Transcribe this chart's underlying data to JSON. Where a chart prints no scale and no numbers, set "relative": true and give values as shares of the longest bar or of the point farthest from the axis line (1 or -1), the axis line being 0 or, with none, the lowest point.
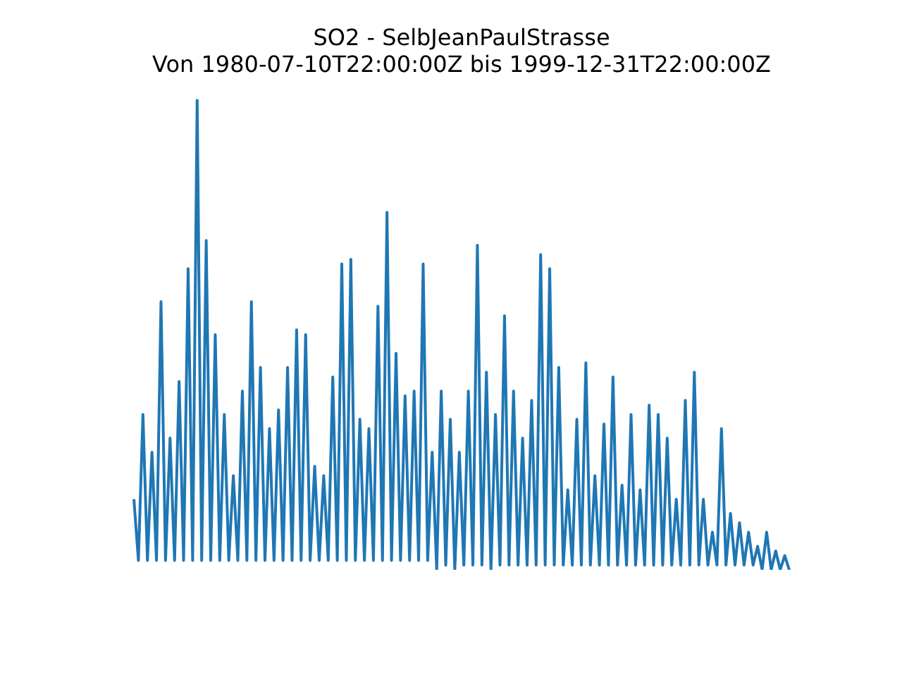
{
  "chart_data": {
    "type": "line",
    "title": "SO2 - SelbJeanPaulStrasse",
    "subtitle": "Von 1980-07-10T22:00:00Z bis 1999-12-31T22:00:00Z",
    "relative": true,
    "categories": [
      null,
      null,
      null,
      null,
      null,
      null,
      null,
      null,
      null,
      null,
      null,
      null,
      null,
      null,
      null,
      null,
      null,
      null,
      null,
      null,
      null,
      null,
      null,
      null,
      null,
      null,
      null,
      null,
      null,
      null,
      null,
      null,
      null,
      null,
      null,
      null,
      null,
      null,
      null,
      null,
      null,
      null,
      null,
      null,
      null,
      null,
      null,
      null,
      null,
      null,
      null,
      null,
      null,
      null,
      null,
      null,
      null,
      null,
      null,
      null,
      null,
      null,
      null,
      null,
      null,
      null,
      null,
      null,
      null,
      null,
      null,
      null,
      null,
      null,
      null,
      null,
      null,
      null,
      null,
      null,
      null,
      null,
      null,
      null,
      null,
      null,
      null,
      null,
      null,
      null,
      null,
      null,
      null,
      null,
      null,
      null,
      null,
      null,
      null,
      null,
      null,
      null,
      null,
      null,
      null,
      null,
      null,
      null,
      null,
      null,
      null,
      null,
      null,
      null,
      null,
      null,
      null,
      null,
      null,
      null,
      null,
      null,
      null,
      null,
      null,
      null,
      null,
      null,
      null,
      null,
      null,
      null,
      null,
      null,
      null,
      null,
      null,
      null,
      null,
      null,
      null,
      null,
      null,
      null,
      null,
      null
    ],
    "series": [
      {
        "color": "#1f77b4",
        "values": [
          0.15,
          0.02,
          0.33,
          0.02,
          0.25,
          0.02,
          0.57,
          0.02,
          0.28,
          0.02,
          0.4,
          0.02,
          0.64,
          0.02,
          1.0,
          0.02,
          0.7,
          0.02,
          0.5,
          0.02,
          0.33,
          0.02,
          0.2,
          0.02,
          0.38,
          0.02,
          0.57,
          0.02,
          0.43,
          0.02,
          0.3,
          0.02,
          0.34,
          0.02,
          0.43,
          0.02,
          0.51,
          0.02,
          0.5,
          0.02,
          0.22,
          0.02,
          0.2,
          0.02,
          0.41,
          0.02,
          0.65,
          0.02,
          0.66,
          0.02,
          0.32,
          0.02,
          0.3,
          0.02,
          0.56,
          0.02,
          0.76,
          0.02,
          0.46,
          0.02,
          0.37,
          0.02,
          0.38,
          0.02,
          0.65,
          0.02,
          0.25,
          0.0,
          0.38,
          0.01,
          0.32,
          0.0,
          0.25,
          0.01,
          0.38,
          0.01,
          0.69,
          0.01,
          0.42,
          0.0,
          0.33,
          0.01,
          0.54,
          0.01,
          0.38,
          0.01,
          0.28,
          0.01,
          0.36,
          0.01,
          0.67,
          0.01,
          0.64,
          0.01,
          0.43,
          0.01,
          0.17,
          0.01,
          0.32,
          0.01,
          0.44,
          0.01,
          0.2,
          0.01,
          0.31,
          0.01,
          0.41,
          0.01,
          0.18,
          0.01,
          0.33,
          0.01,
          0.17,
          0.01,
          0.35,
          0.01,
          0.33,
          0.01,
          0.28,
          0.01,
          0.15,
          0.01,
          0.36,
          0.01,
          0.42,
          0.01,
          0.15,
          0.01,
          0.08,
          0.01,
          0.3,
          0.01,
          0.12,
          0.01,
          0.1,
          0.01,
          0.08,
          0.01,
          0.05,
          0.0,
          0.08,
          0.0,
          0.04,
          0.0,
          0.03,
          0.0
        ]
      }
    ]
  }
}
